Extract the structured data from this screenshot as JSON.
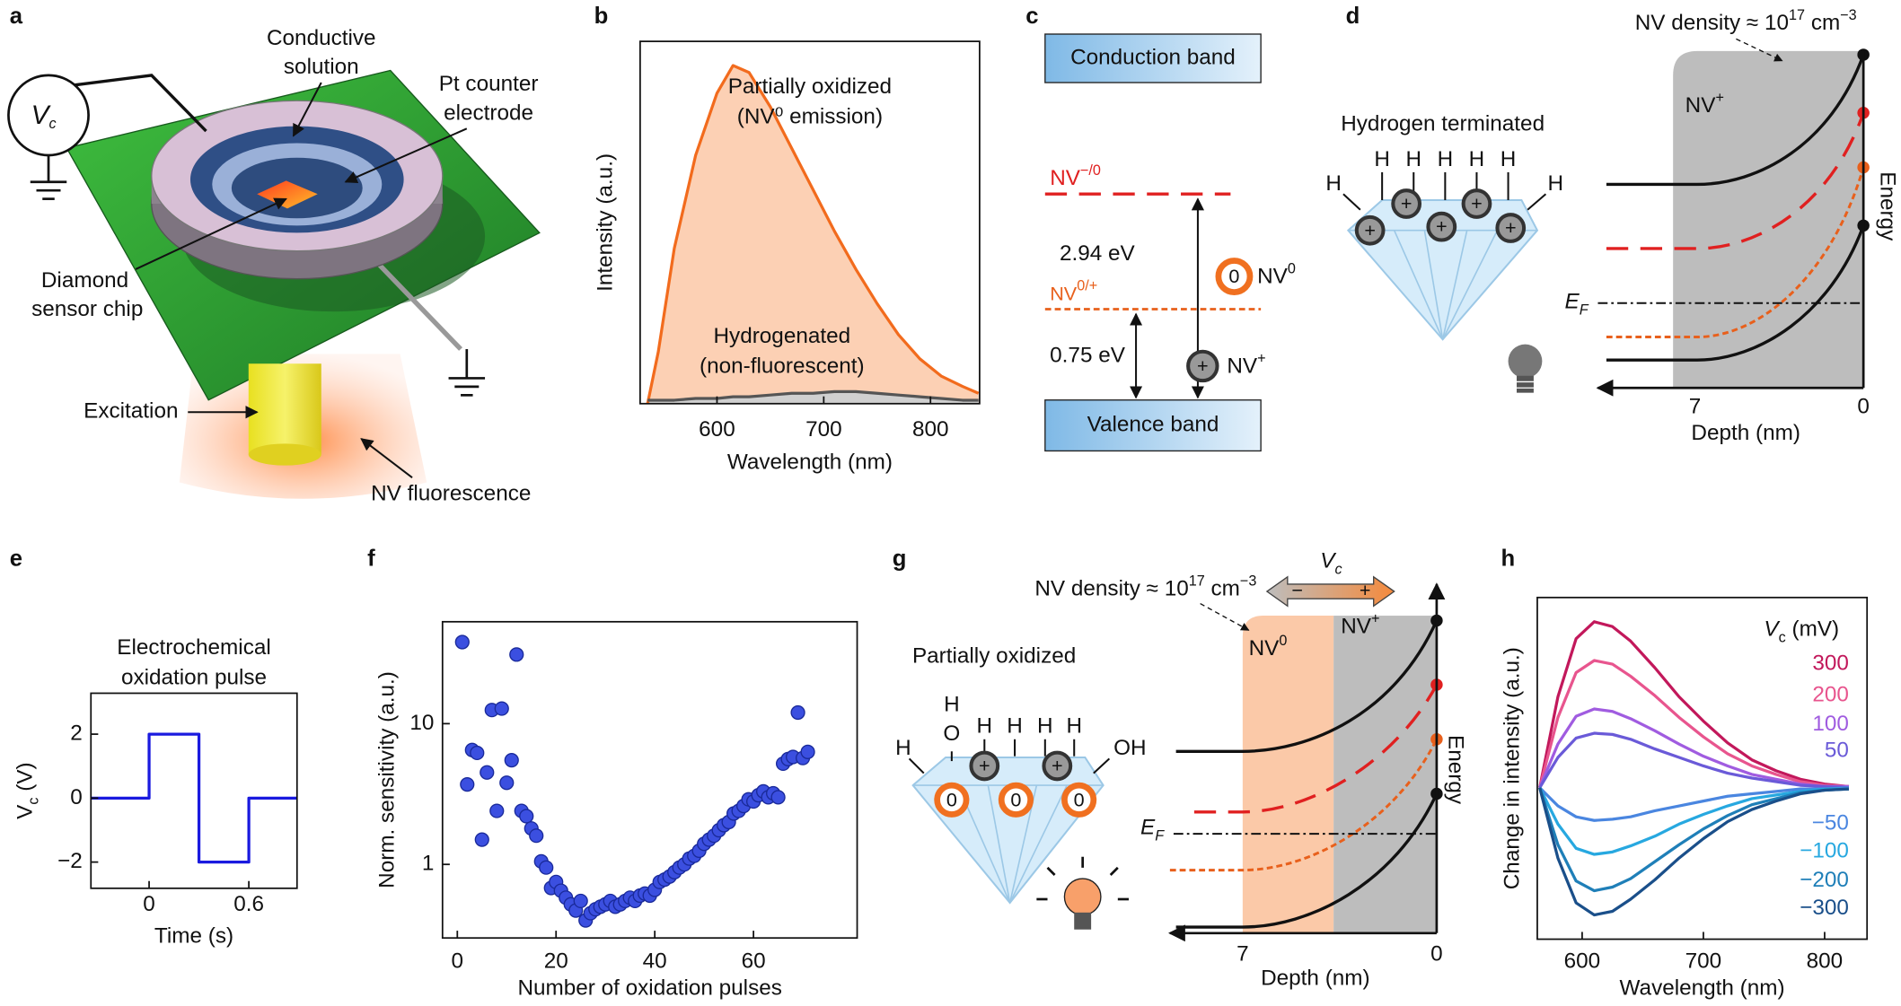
{
  "chart_data": [
    {
      "type": "line",
      "xlabel": "Wavelength (nm)",
      "ylabel": "Intensity (a.u.)",
      "annotations": [
        "Partially oxidized",
        "(NV⁰ emission)",
        "Hydrogenated",
        "(non-fluorescent)"
      ],
      "x": [
        535,
        545,
        560,
        580,
        600,
        615,
        630,
        650,
        670,
        690,
        710,
        730,
        750,
        770,
        790,
        810,
        830,
        845
      ],
      "series": [
        {
          "color": "#f26b1d",
          "fill_color": "#fcd0b4",
          "values": [
            0,
            15,
            45,
            72,
            90,
            98,
            96,
            86,
            74,
            62,
            50,
            39,
            29,
            20,
            13,
            8,
            5,
            3
          ]
        },
        {
          "color": "#555555",
          "fill_color": "#d0d0d0",
          "values": [
            1,
            1,
            1,
            1.5,
            1.5,
            2,
            2,
            2.5,
            3,
            3,
            3.5,
            3.5,
            3,
            2.5,
            2,
            1.5,
            1,
            1
          ]
        }
      ],
      "xlim": [
        528,
        846
      ],
      "ylim": [
        0,
        105
      ],
      "xticks": [
        600,
        700,
        800
      ]
    },
    {
      "type": "line",
      "title_lines": [
        "Electrochemical",
        "oxidation pulse"
      ],
      "xlabel": "Time (s)",
      "ylabel": [
        "V",
        "c",
        " (V)"
      ],
      "x": [
        -0.35,
        0,
        0,
        0.3,
        0.3,
        0.6,
        0.6,
        0.89
      ],
      "values": [
        0,
        0,
        2,
        2,
        -2,
        -2,
        0,
        0
      ],
      "color": "#1a1adf",
      "xlim": [
        -0.35,
        0.89
      ],
      "ylim": [
        -2.82,
        3.28
      ],
      "xticks": [
        0,
        0.6
      ],
      "yticks": [
        {
          "value": -2,
          "label": "−2"
        },
        0,
        2
      ]
    },
    {
      "type": "scatter",
      "xlabel": "Number of oxidation pulses",
      "ylabel": "Norm. sensitivity (a.u.)",
      "color": "#3b4fe0",
      "ylog": true,
      "x": [
        1,
        2,
        3,
        4,
        5,
        6,
        7,
        8,
        9,
        10,
        11,
        12,
        13,
        14,
        15,
        16,
        17,
        18,
        19,
        20,
        21,
        22,
        23,
        24,
        25,
        26,
        27,
        28,
        29,
        30,
        31,
        32,
        33,
        34,
        35,
        36,
        37,
        38,
        39,
        40,
        41,
        42,
        43,
        44,
        45,
        46,
        47,
        48,
        49,
        50,
        51,
        52,
        53,
        54,
        55,
        56,
        57,
        58,
        59,
        60,
        61,
        62,
        63,
        64,
        65,
        66,
        67,
        68,
        69,
        70,
        71
      ],
      "values": [
        38,
        3.7,
        6.5,
        6.2,
        1.5,
        4.5,
        12.5,
        2.4,
        12.8,
        3.8,
        5.5,
        31,
        2.4,
        2.2,
        1.8,
        1.6,
        1.05,
        0.95,
        0.68,
        0.75,
        0.65,
        0.58,
        0.52,
        0.47,
        0.55,
        0.4,
        0.45,
        0.48,
        0.5,
        0.52,
        0.55,
        0.5,
        0.52,
        0.55,
        0.58,
        0.55,
        0.6,
        0.62,
        0.6,
        0.66,
        0.75,
        0.78,
        0.82,
        0.88,
        0.95,
        1.0,
        1.1,
        1.15,
        1.25,
        1.4,
        1.5,
        1.6,
        1.75,
        1.9,
        2.0,
        2.3,
        2.4,
        2.6,
        2.9,
        2.8,
        3.1,
        3.3,
        3.0,
        3.2,
        3.0,
        5.2,
        5.6,
        5.8,
        12,
        5.7,
        6.3
      ],
      "xlim": [
        -3,
        81
      ],
      "ylim": [
        0.3,
        53
      ],
      "xticks": [
        0,
        20,
        40,
        60
      ],
      "yticks": [
        1,
        10
      ]
    },
    {
      "type": "line",
      "xlabel": "Wavelength (nm)",
      "ylabel": "Change in intensity (a.u.)",
      "legend_title": [
        "V",
        "c",
        " (mV)"
      ],
      "x": [
        565,
        580,
        595,
        610,
        625,
        640,
        660,
        680,
        700,
        720,
        740,
        760,
        780,
        800,
        820
      ],
      "series": [
        {
          "name": "300",
          "color": "#c2185b",
          "values": [
            0,
            0.75,
            1.23,
            1.37,
            1.33,
            1.21,
            0.99,
            0.75,
            0.55,
            0.37,
            0.23,
            0.14,
            0.07,
            0.03,
            0.01
          ]
        },
        {
          "name": "200",
          "color": "#e8558e",
          "values": [
            0,
            0.58,
            0.95,
            1.05,
            1.02,
            0.92,
            0.76,
            0.58,
            0.42,
            0.28,
            0.18,
            0.11,
            0.05,
            0.02,
            0.01
          ]
        },
        {
          "name": "100",
          "color": "#a05ce0",
          "values": [
            0,
            0.36,
            0.59,
            0.65,
            0.63,
            0.57,
            0.47,
            0.36,
            0.26,
            0.18,
            0.11,
            0.07,
            0.03,
            0.01,
            0.01
          ]
        },
        {
          "name": "50",
          "color": "#6a5ad8",
          "values": [
            0,
            0.25,
            0.41,
            0.45,
            0.44,
            0.4,
            0.32,
            0.25,
            0.18,
            0.12,
            0.08,
            0.05,
            0.02,
            0.01,
            0
          ]
        },
        {
          "name": "−50",
          "color": "#4a86e0",
          "values": [
            0,
            -0.15,
            -0.24,
            -0.27,
            -0.26,
            -0.24,
            -0.19,
            -0.15,
            -0.11,
            -0.07,
            -0.05,
            -0.03,
            -0.01,
            -0.01,
            0
          ]
        },
        {
          "name": "−100",
          "color": "#27a8e0",
          "values": [
            0,
            -0.3,
            -0.5,
            -0.55,
            -0.53,
            -0.48,
            -0.4,
            -0.3,
            -0.22,
            -0.15,
            -0.09,
            -0.06,
            -0.03,
            -0.01,
            -0.01
          ]
        },
        {
          "name": "−200",
          "color": "#1f7fb8",
          "values": [
            0,
            -0.47,
            -0.77,
            -0.85,
            -0.82,
            -0.75,
            -0.61,
            -0.47,
            -0.34,
            -0.23,
            -0.14,
            -0.09,
            -0.04,
            -0.02,
            -0.01
          ]
        },
        {
          "name": "−300",
          "color": "#1a4f8a",
          "values": [
            0,
            -0.58,
            -0.95,
            -1.05,
            -1.02,
            -0.92,
            -0.76,
            -0.58,
            -0.42,
            -0.28,
            -0.18,
            -0.11,
            -0.05,
            -0.02,
            -0.01
          ]
        }
      ],
      "xlim": [
        563,
        835
      ],
      "ylim": [
        -1.25,
        1.57
      ],
      "xticks": [
        600,
        700,
        800
      ]
    }
  ],
  "diagrams": {
    "panel_labels": [
      "a",
      "b",
      "c",
      "d",
      "e",
      "f",
      "g",
      "h"
    ],
    "a": {
      "source_symbol": [
        "V",
        "c"
      ],
      "conductive_solution": [
        "Conductive",
        "solution"
      ],
      "counter_electrode": [
        "Pt counter",
        "electrode"
      ],
      "sensor_chip": [
        "Diamond",
        "sensor chip"
      ],
      "excitation": "Excitation",
      "fluorescence": "NV fluorescence"
    },
    "c": {
      "conduction_band": "Conduction band",
      "valence_band": "Valence band",
      "level_upper": [
        "NV",
        "−/0"
      ],
      "level_lower": [
        "NV",
        "0/+"
      ],
      "gap_upper": "2.94 eV",
      "gap_lower": "0.75 eV",
      "neutral_charge": "0",
      "neutral_state": [
        "NV",
        "0"
      ],
      "positive_charge": "+",
      "positive_state": [
        "NV",
        "+"
      ]
    },
    "d": {
      "density": [
        "NV density ≈ 10",
        "17",
        " cm",
        "−3"
      ],
      "surface": "Hydrogen terminated",
      "atoms": [
        "H",
        "H",
        "H",
        "H",
        "H",
        "H",
        "H"
      ],
      "charges": [
        "+",
        "+",
        "+",
        "+",
        "+"
      ],
      "region": [
        "NV",
        "+"
      ],
      "energy_axis": "Energy",
      "fermi_level": [
        "E",
        "F"
      ],
      "depth_ticks": [
        "7",
        "0"
      ],
      "depth_axis": "Depth (nm)"
    },
    "g": {
      "density": [
        "NV density ≈ 10",
        "17",
        " cm",
        "−3"
      ],
      "bias": [
        "V",
        "c"
      ],
      "bias_ends": [
        "−",
        "+"
      ],
      "surface": "Partially oxidized",
      "atoms": [
        "H",
        "H",
        "O",
        "H",
        "H",
        "H",
        "H",
        "OH"
      ],
      "charges": [
        "+",
        "+"
      ],
      "neutral": [
        "0",
        "0",
        "0"
      ],
      "regions": [
        [
          "NV",
          "0"
        ],
        [
          "NV",
          "+"
        ]
      ],
      "energy_axis": "Energy",
      "fermi_level": [
        "E",
        "F"
      ],
      "depth_ticks": [
        "7",
        "0"
      ],
      "depth_axis": "Depth (nm)"
    }
  }
}
